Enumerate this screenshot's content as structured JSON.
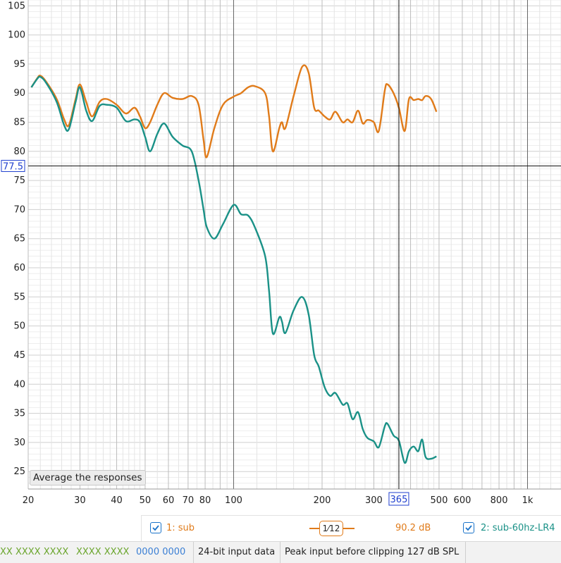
{
  "chart_data": {
    "type": "line",
    "title": "",
    "xlabel": "",
    "ylabel": "",
    "x_scale": "log",
    "xlim": [
      20,
      1300
    ],
    "ylim": [
      22,
      106
    ],
    "x_ticks": [
      20,
      30,
      40,
      50,
      60,
      70,
      80,
      100,
      200,
      300,
      500,
      600,
      800,
      "1k"
    ],
    "y_ticks": [
      105,
      100,
      95,
      90,
      85,
      80,
      75,
      70,
      65,
      60,
      55,
      50,
      45,
      40,
      35,
      30,
      25
    ],
    "grid": true,
    "cursor": {
      "x": 365,
      "y": 77.5,
      "x_label": "365",
      "y_label": "77.5"
    },
    "series": [
      {
        "name": "1: sub",
        "color": "#e07b1a",
        "x": [
          20.5,
          21.5,
          22,
          23,
          25,
          26.5,
          27.5,
          29,
          30,
          31.5,
          33,
          35,
          37,
          40,
          43,
          46,
          48,
          50,
          52,
          55,
          58,
          62,
          67,
          72,
          76,
          79,
          81,
          86,
          92,
          100,
          106,
          112,
          118,
          128,
          132,
          136,
          143,
          146,
          150,
          160,
          171,
          180,
          188,
          195,
          204,
          213,
          222,
          235,
          244,
          254,
          265,
          275,
          285,
          300,
          312,
          327,
          334,
          350,
          365,
          382,
          395,
          410,
          425,
          438,
          450,
          470,
          490
        ],
        "values": [
          91,
          92.6,
          93,
          92,
          89,
          85.5,
          84.5,
          89,
          91.5,
          88.5,
          86,
          88.5,
          89,
          88,
          86.5,
          87.5,
          86,
          84,
          85,
          88,
          90,
          89.2,
          89,
          89.5,
          88,
          82,
          79,
          84,
          88,
          89.4,
          90,
          91,
          91.2,
          90,
          86,
          80,
          84,
          85,
          84,
          89.5,
          94.5,
          93.5,
          87.5,
          87,
          86,
          85.5,
          86.8,
          85,
          85.5,
          85,
          87,
          84.8,
          85.4,
          85,
          83.5,
          90.5,
          91.5,
          90,
          87.5,
          83.5,
          89,
          88.8,
          89,
          88.8,
          89.5,
          89,
          86.8
        ]
      },
      {
        "name": "2: sub-60hz-LR4",
        "color": "#1a9187",
        "x": [
          20.5,
          21.5,
          22,
          23,
          25,
          26.5,
          27.5,
          29,
          30,
          31.5,
          33,
          35,
          37,
          40,
          43,
          46,
          48,
          50,
          52,
          55,
          58,
          62,
          67,
          72,
          76,
          79,
          81,
          86,
          92,
          100,
          106,
          112,
          118,
          128,
          132,
          136,
          143,
          146,
          150,
          160,
          171,
          180,
          188,
          195,
          204,
          213,
          222,
          235,
          244,
          254,
          265,
          275,
          285,
          300,
          312,
          327,
          334,
          350,
          365,
          382,
          395,
          410,
          425,
          438,
          450,
          470,
          490
        ],
        "values": [
          91,
          92.5,
          92.8,
          91.8,
          88.5,
          84.5,
          83.8,
          88.5,
          91,
          87,
          85.2,
          87.8,
          88,
          87.5,
          85.2,
          85.5,
          85,
          82.5,
          80,
          83,
          84.8,
          82.5,
          81,
          80,
          75,
          70,
          67,
          65,
          67.5,
          70.8,
          69.2,
          69,
          67,
          62,
          56,
          48.7,
          51.5,
          50.8,
          48.8,
          52.7,
          55,
          52,
          45,
          43,
          39.5,
          38,
          38.5,
          36.5,
          36.7,
          34,
          35.2,
          32.3,
          30.8,
          30.2,
          29.2,
          32.8,
          33.2,
          31.2,
          30.3,
          26.5,
          28.5,
          29.3,
          28.5,
          30.5,
          27.5,
          27.2,
          27.6
        ]
      }
    ],
    "legend": {
      "sub_label": "1: sub",
      "smoothing_label": "1⁄12",
      "value_label": "90.2 dB",
      "lr4_label": "2: sub-60hz-LR4"
    }
  },
  "button": {
    "average_label": "Average the responses"
  },
  "status": {
    "item1": "XX XXXX XXXX",
    "item2": "XXXX XXXX",
    "item3": "0000 0000",
    "item4": "24-bit input data",
    "item5": "Peak input before clipping 127 dB SPL"
  },
  "colors": {
    "sub": "#e07b1a",
    "lr4": "#1a9187",
    "cursor_label": "#1f3fcf",
    "check": "#1a73c9"
  }
}
